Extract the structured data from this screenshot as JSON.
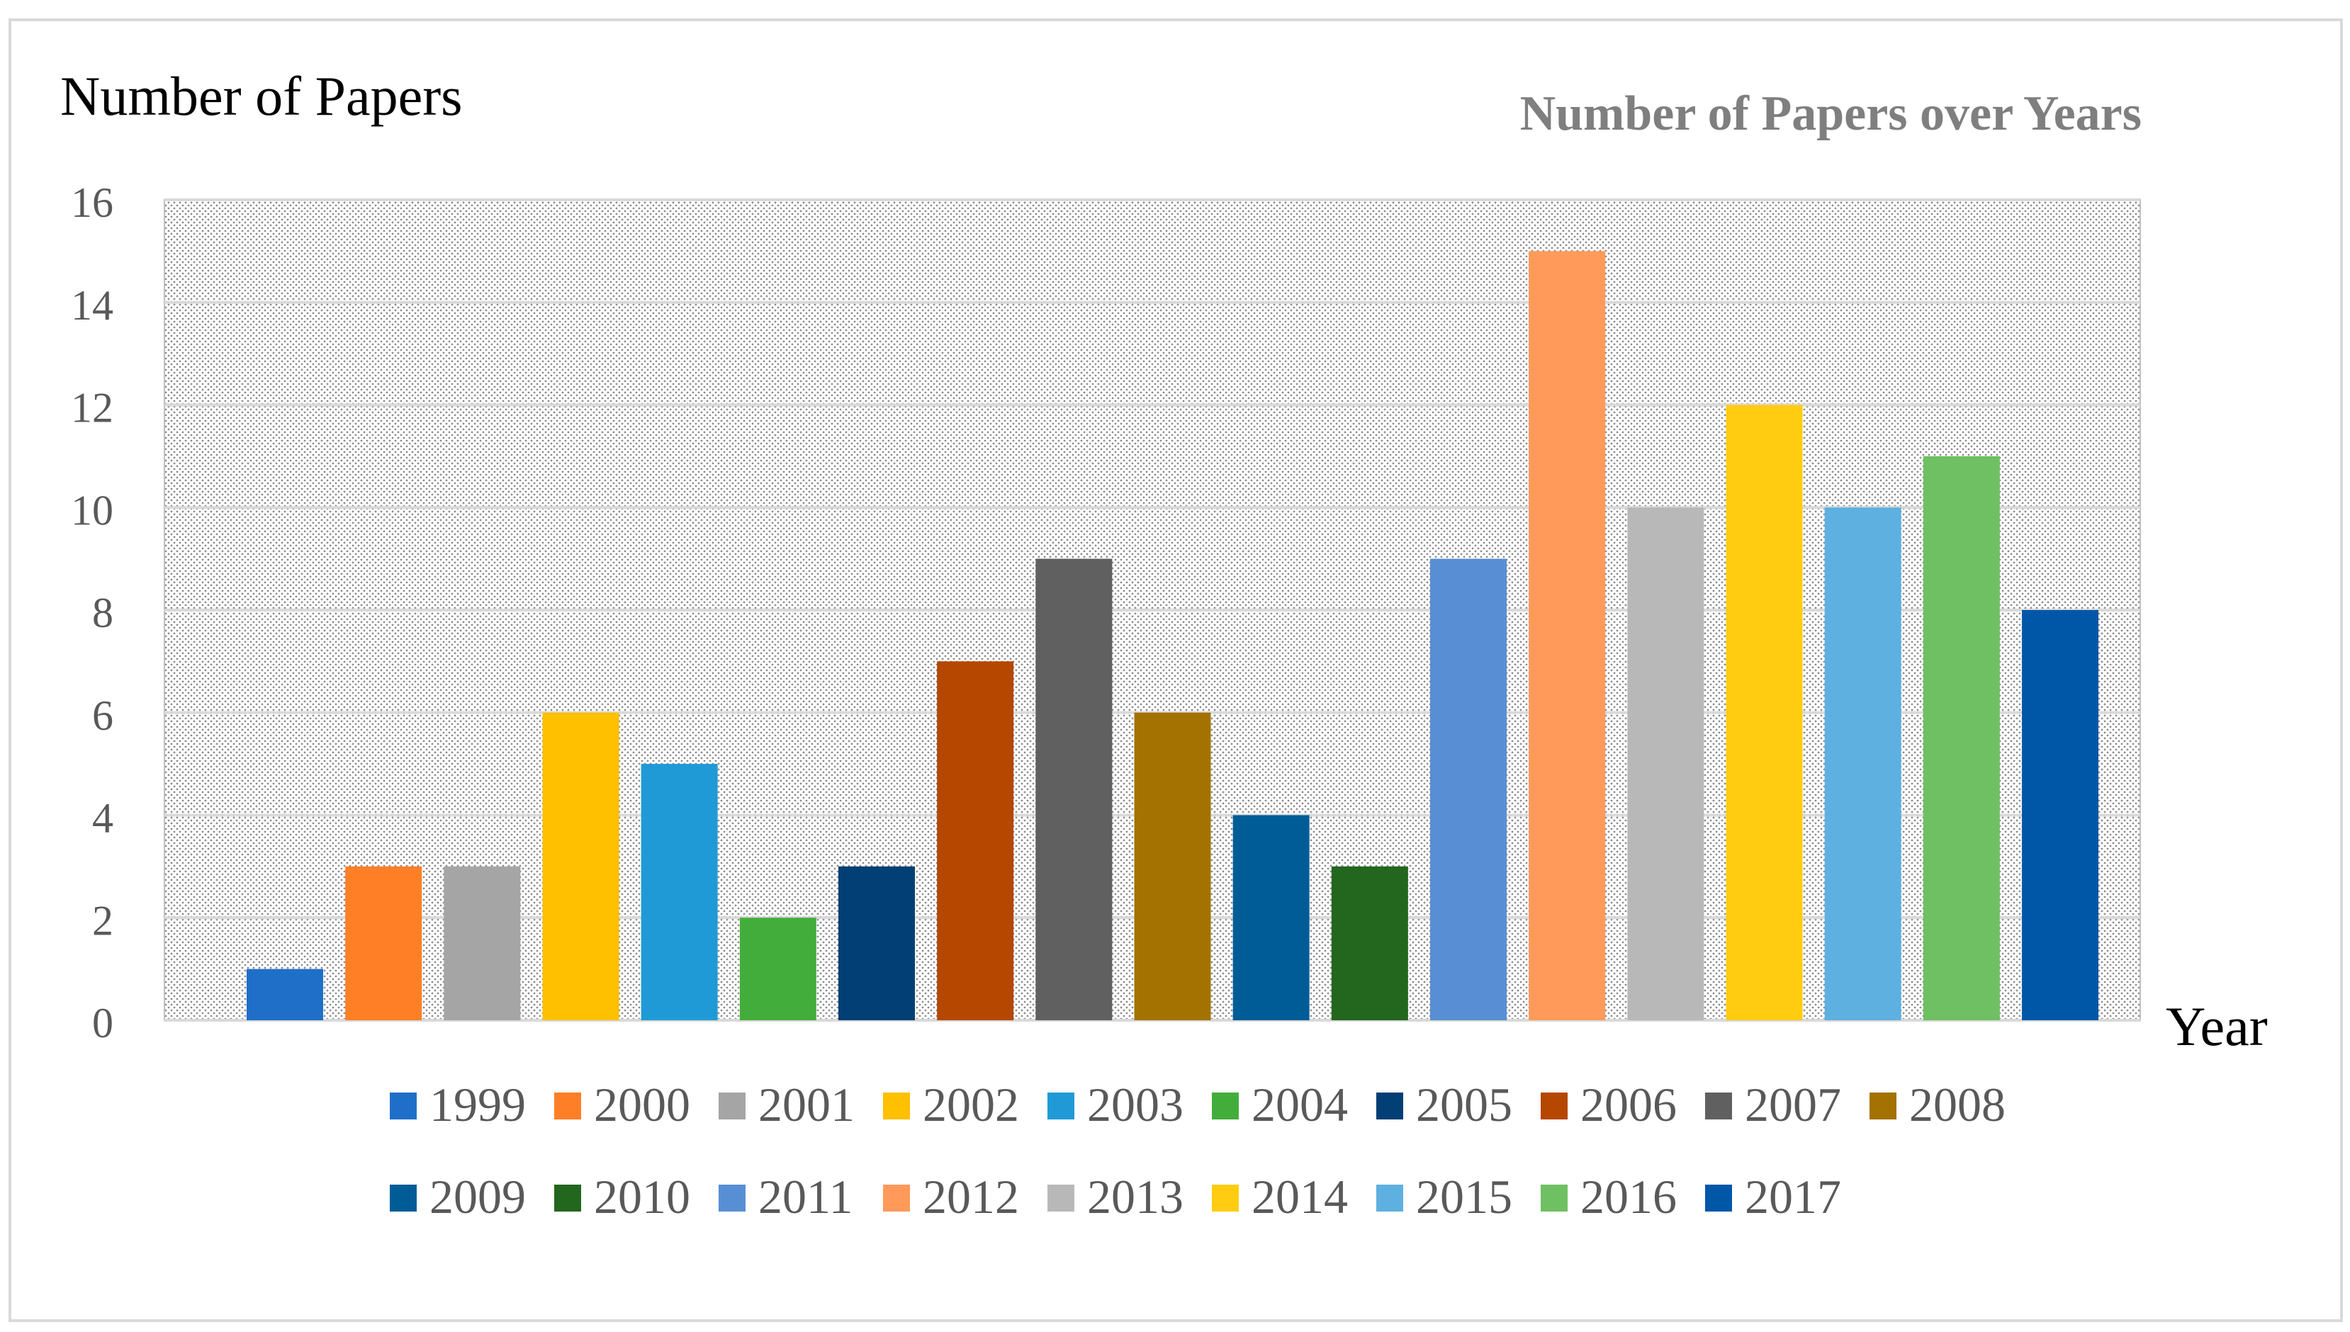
{
  "chart_data": {
    "type": "bar",
    "title": "Number of Papers over Years",
    "ylabel": "Number of Papers",
    "xlabel": "Year",
    "ylim": [
      0,
      16
    ],
    "yticks": [
      0,
      2,
      4,
      6,
      8,
      10,
      12,
      14,
      16
    ],
    "grid": true,
    "legend_position": "bottom",
    "categories": [
      "1999",
      "2000",
      "2001",
      "2002",
      "2003",
      "2004",
      "2005",
      "2006",
      "2007",
      "2008",
      "2009",
      "2010",
      "2011",
      "2012",
      "2013",
      "2014",
      "2015",
      "2016",
      "2017"
    ],
    "values": [
      1,
      3,
      3,
      6,
      5,
      2,
      3,
      7,
      9,
      6,
      4,
      3,
      9,
      15,
      10,
      12,
      10,
      11,
      8
    ],
    "colors": [
      "#1f6fc9",
      "#ff7f27",
      "#a5a5a5",
      "#ffc000",
      "#1f9ad6",
      "#43ad3c",
      "#013f74",
      "#b54701",
      "#606060",
      "#a37201",
      "#005c97",
      "#23661e",
      "#588fd4",
      "#ff9a5a",
      "#b8b8b8",
      "#ffcc12",
      "#5eb0e0",
      "#6fc062",
      "#0057a8"
    ],
    "title_color": "#7f7f7f",
    "axis_text_color": "#595959"
  }
}
